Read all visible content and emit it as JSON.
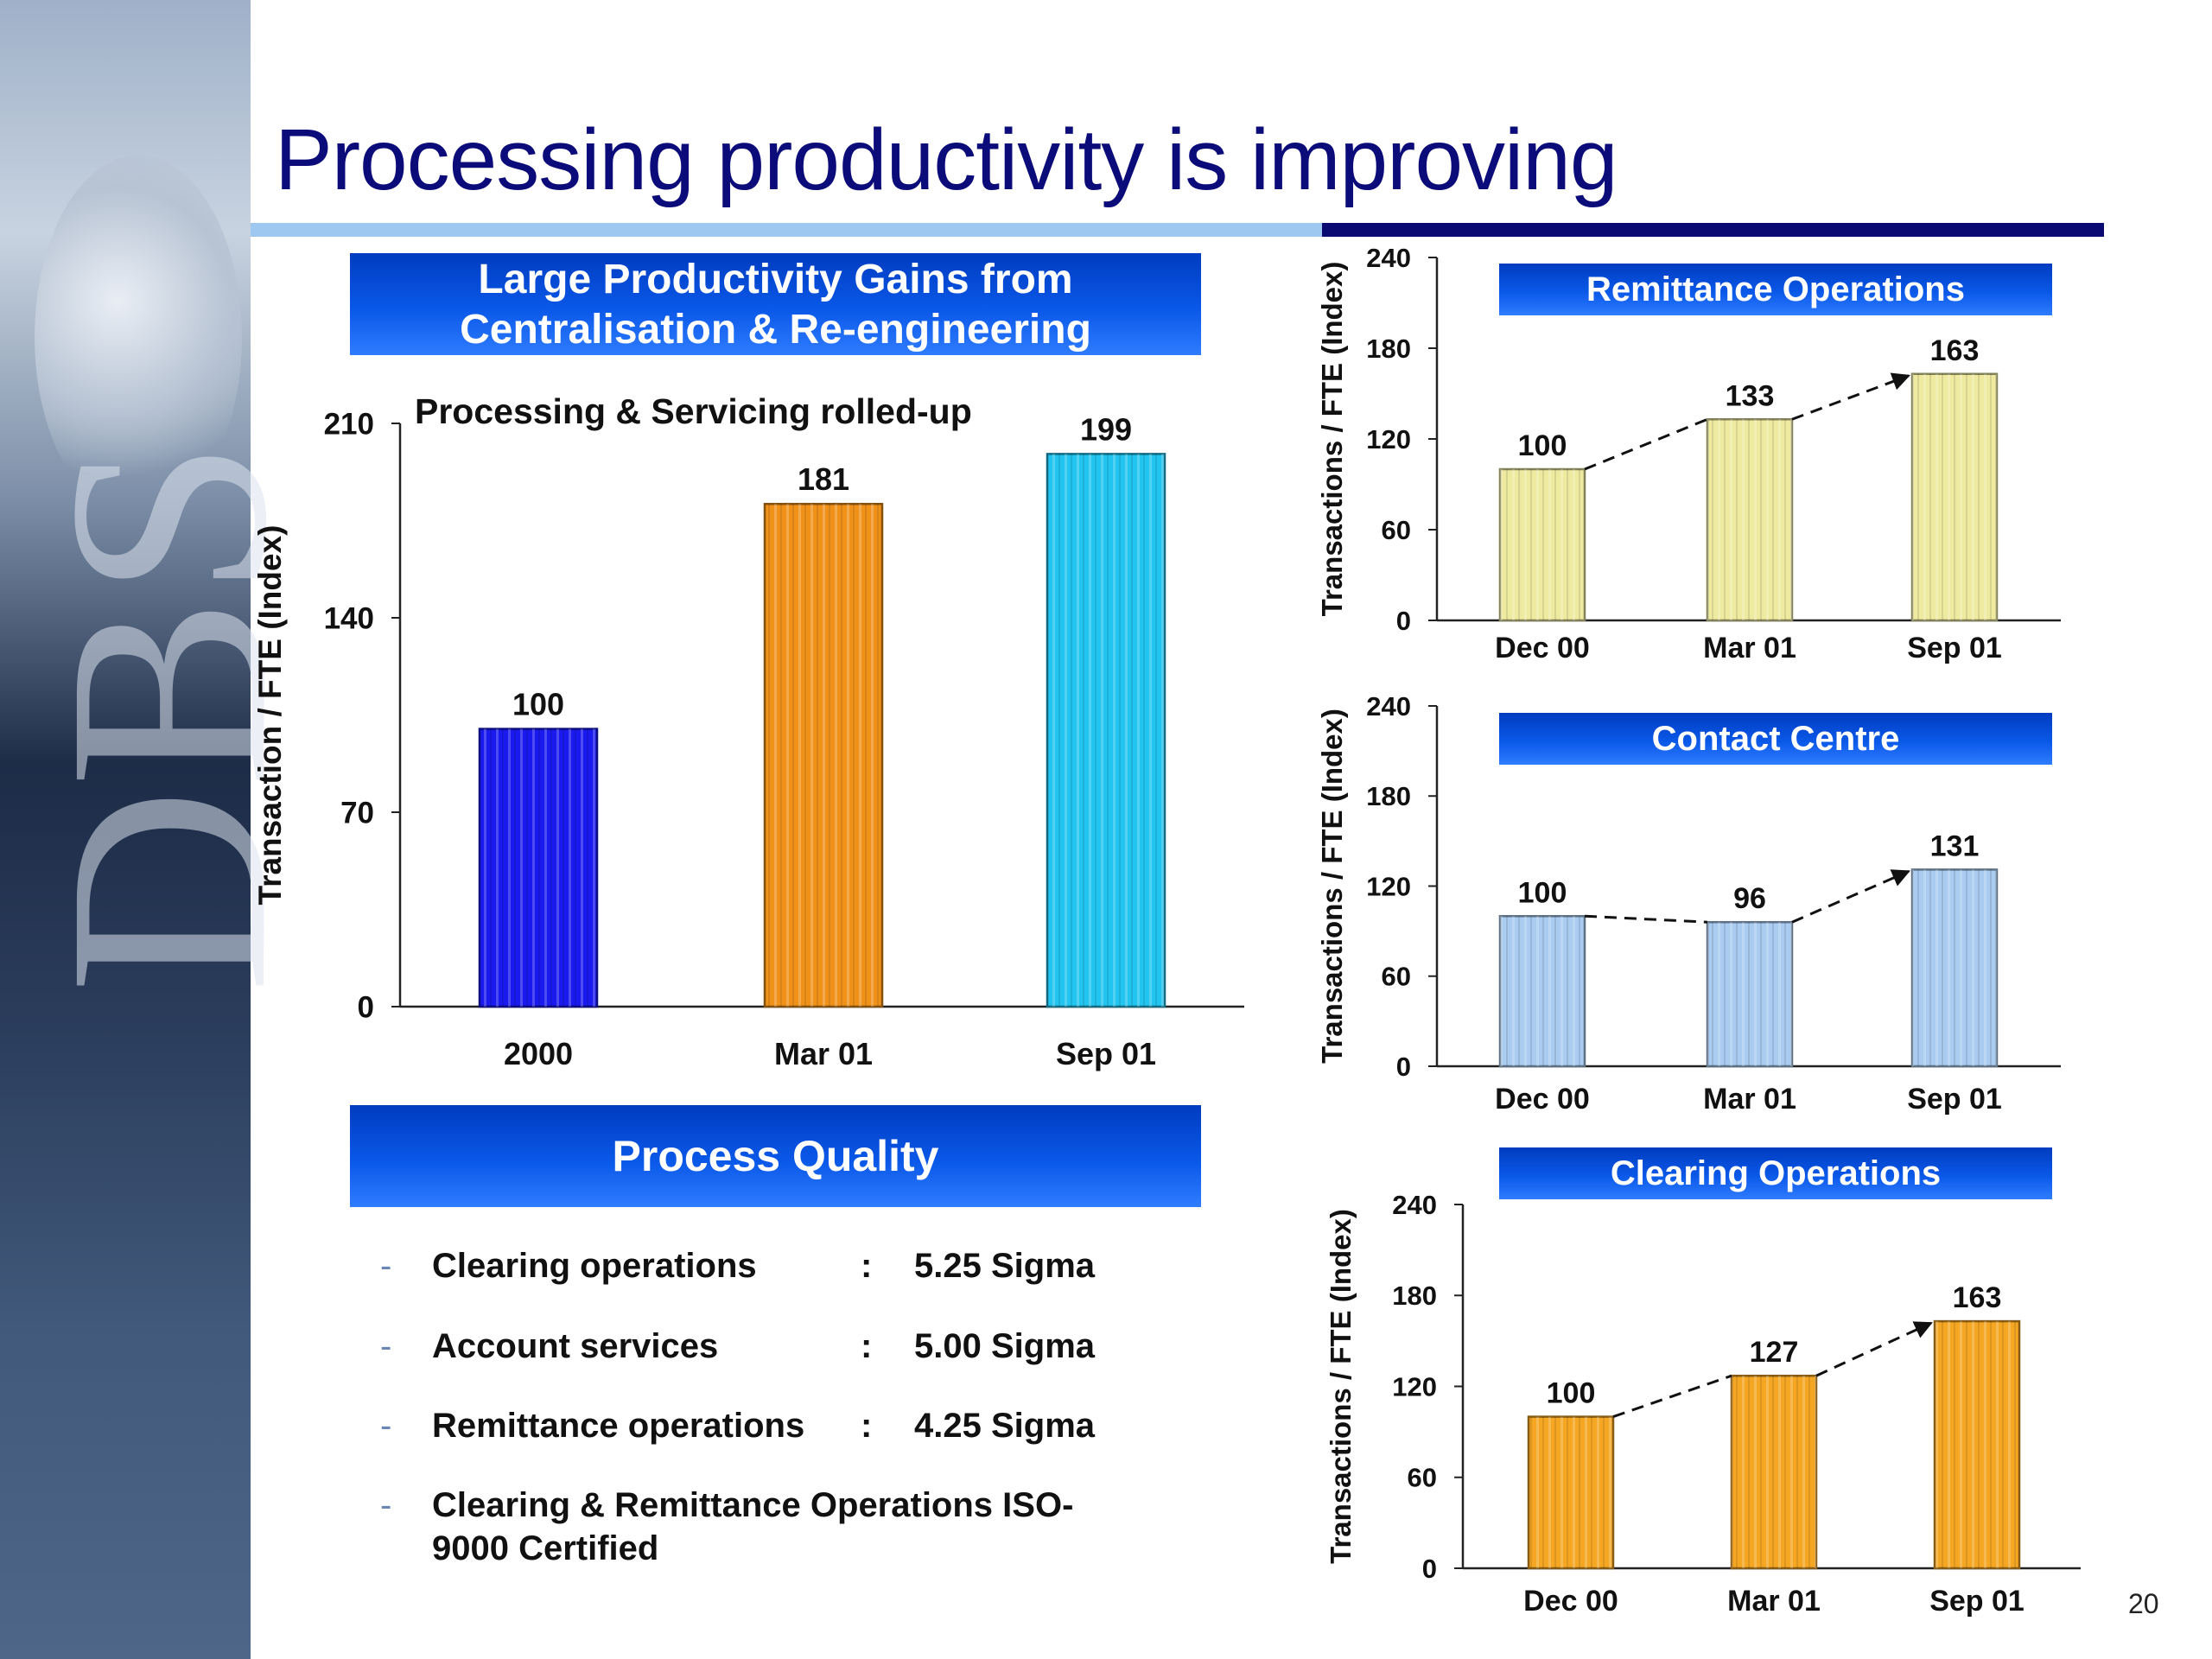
{
  "slide": {
    "title": "Processing productivity is improving",
    "page_number": "20",
    "watermark": "DBS"
  },
  "left_panel": {
    "banner_line1": "Large Productivity Gains from",
    "banner_line2": "Centralisation & Re-engineering",
    "quality_banner": "Process Quality",
    "quality_items": [
      {
        "label": "Clearing operations",
        "colon": ":",
        "value": "5.25 Sigma"
      },
      {
        "label": "Account services",
        "colon": ":",
        "value": "5.00 Sigma"
      },
      {
        "label": "Remittance operations",
        "colon": ":",
        "value": "4.25 Sigma"
      },
      {
        "label": "Clearing & Remittance Operations ISO-",
        "label_line2": "9000 Certified"
      }
    ]
  },
  "colors": {
    "title": "#0b0b7a",
    "main_bars": [
      "#1a1aee",
      "#f0921a",
      "#22c4f0"
    ],
    "remittance": "#eeeaa0",
    "contact": "#a9ccf0",
    "clearing": "#f5a623"
  },
  "chart_data": [
    {
      "type": "bar",
      "title": "Processing & Servicing rolled-up",
      "ylabel": "Transaction / FTE (Index)",
      "xlabel": "",
      "categories": [
        "2000",
        "Mar 01",
        "Sep 01"
      ],
      "values": [
        100,
        181,
        199
      ],
      "data_labels": [
        "100",
        "181",
        "199"
      ],
      "ylim": [
        0,
        210
      ],
      "yticks": [
        "0",
        "70",
        "140",
        "210"
      ],
      "grid": false,
      "legend": "none"
    },
    {
      "type": "bar",
      "title": "Remittance Operations",
      "ylabel": "Transactions / FTE (Index)",
      "xlabel": "",
      "categories": [
        "Dec 00",
        "Mar 01",
        "Sep 01"
      ],
      "values": [
        100,
        133,
        163
      ],
      "data_labels": [
        "100",
        "133",
        "163"
      ],
      "ylim": [
        0,
        240
      ],
      "yticks": [
        "0",
        "60",
        "120",
        "180",
        "240"
      ],
      "trend_line": "dashed",
      "grid": false,
      "legend": "none"
    },
    {
      "type": "bar",
      "title": "Contact Centre",
      "ylabel": "Transactions / FTE (Index)",
      "xlabel": "",
      "categories": [
        "Dec 00",
        "Mar 01",
        "Sep 01"
      ],
      "values": [
        100,
        96,
        131
      ],
      "data_labels": [
        "100",
        "96",
        "131"
      ],
      "ylim": [
        0,
        240
      ],
      "yticks": [
        "0",
        "60",
        "120",
        "180",
        "240"
      ],
      "trend_line": "dashed",
      "grid": false,
      "legend": "none"
    },
    {
      "type": "bar",
      "title": "Clearing Operations",
      "ylabel": "Transactions / FTE (Index)",
      "xlabel": "",
      "categories": [
        "Dec 00",
        "Mar 01",
        "Sep 01"
      ],
      "values": [
        100,
        127,
        163
      ],
      "data_labels": [
        "100",
        "127",
        "163"
      ],
      "ylim": [
        0,
        240
      ],
      "yticks": [
        "0",
        "60",
        "120",
        "180",
        "240"
      ],
      "trend_line": "dashed",
      "grid": false,
      "legend": "none"
    }
  ]
}
